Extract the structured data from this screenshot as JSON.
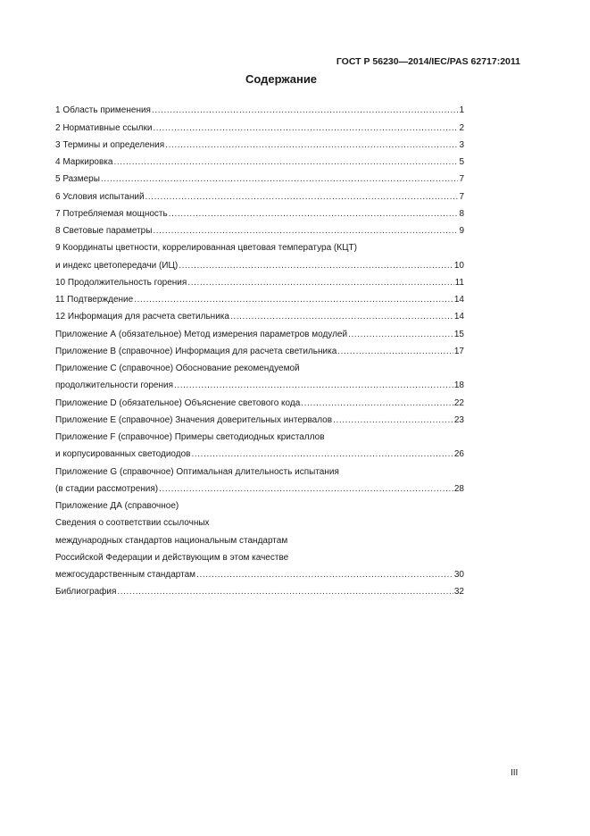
{
  "header": {
    "doc_code": "ГОСТ Р 56230—2014/IEC/PAS 62717:2011"
  },
  "title": "Содержание",
  "toc": [
    {
      "text": "1 Область применения",
      "page": "1"
    },
    {
      "text": "2 Нормативные ссылки",
      "page": "2"
    },
    {
      "text": "3 Термины и определения",
      "page": "3"
    },
    {
      "text": "4 Маркировка",
      "page": "5"
    },
    {
      "text": "5 Размеры",
      "page": "7"
    },
    {
      "text": "6 Условия испытаний",
      "page": "7"
    },
    {
      "text": "7 Потребляемая мощность",
      "page": "8"
    },
    {
      "text": "8 Световые параметры",
      "page": "9"
    },
    {
      "text": "9 Координаты цветности, коррелированная цветовая температура (КЦТ)",
      "page": null
    },
    {
      "text": "и индекс цветопередачи (ИЦ)",
      "page": "10"
    },
    {
      "text": "10 Продолжительность горения",
      "page": "11"
    },
    {
      "text": "11 Подтверждение",
      "page": "14"
    },
    {
      "text": "12 Информация для расчета светильника",
      "page": "14"
    },
    {
      "text": "Приложение А (обязательное) Метод измерения параметров модулей",
      "page": "15"
    },
    {
      "text": "Приложение В (справочное) Информация для расчета светильника",
      "page": "17"
    },
    {
      "text": "Приложение С (справочное) Обоснование рекомендуемой",
      "page": null
    },
    {
      "text": "продолжительности горения",
      "page": "18"
    },
    {
      "text": "Приложение D (обязательное) Объяснение светового кода",
      "page": "22"
    },
    {
      "text": "Приложение E (справочное) Значения доверительных интервалов",
      "page": "23"
    },
    {
      "text": "Приложение F (справочное) Примеры светодиодных кристаллов",
      "page": null
    },
    {
      "text": "и корпусированных светодиодов",
      "page": "26"
    },
    {
      "text": "Приложение G (справочное) Оптимальная длительность испытания",
      "page": null
    },
    {
      "text": "(в стадии рассмотрения)",
      "page": "28"
    },
    {
      "text": "Приложение ДА (справочное)",
      "page": null
    },
    {
      "text": "Сведения о соответствии ссылочных",
      "page": null
    },
    {
      "text": "международных стандартов национальным стандартам",
      "page": null
    },
    {
      "text": "Российской Федерации и действующим в этом качестве",
      "page": null
    },
    {
      "text": "межгосударственным стандартам",
      "page": "30"
    },
    {
      "text": "Библиография",
      "page": "32"
    }
  ],
  "footer": {
    "page_number": "III"
  }
}
